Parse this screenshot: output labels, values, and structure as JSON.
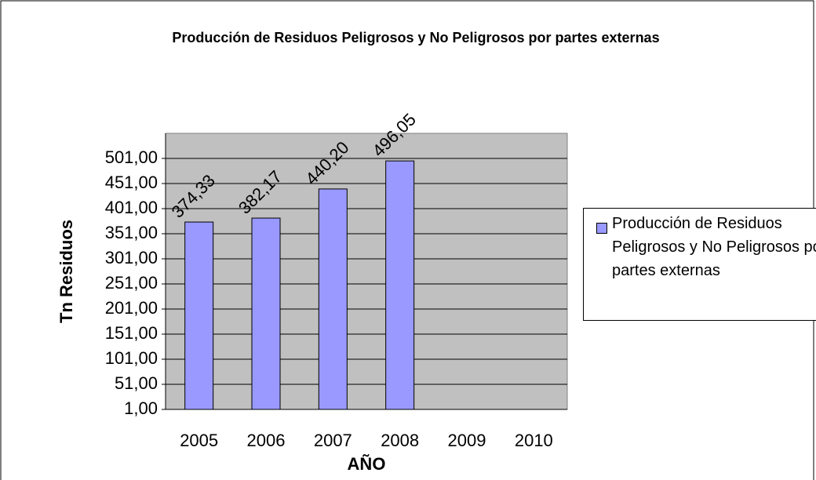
{
  "chart_data": {
    "type": "bar",
    "title": "Producción de Residuos Peligrosos y No Peligrosos por partes externas",
    "x_label": "AÑO",
    "y_label": "Tn Residuos",
    "categories": [
      "2005",
      "2006",
      "2007",
      "2008",
      "2009",
      "2010"
    ],
    "series": [
      {
        "name": "Producción de Residuos Peligrosos y No Peligrosos por partes externas",
        "color": "#9999ff",
        "values": [
          374.33,
          382.17,
          440.2,
          496.05,
          null,
          null
        ],
        "value_labels": [
          "374,33",
          "382,17",
          "440,20",
          "496,05",
          null,
          null
        ]
      }
    ],
    "ylim": [
      1,
      551
    ],
    "yticks": [
      {
        "value": 1,
        "label": "1,00"
      },
      {
        "value": 51,
        "label": "51,00"
      },
      {
        "value": 101,
        "label": "101,00"
      },
      {
        "value": 151,
        "label": "151,00"
      },
      {
        "value": 201,
        "label": "201,00"
      },
      {
        "value": 251,
        "label": "251,00"
      },
      {
        "value": 301,
        "label": "301,00"
      },
      {
        "value": 351,
        "label": "351,00"
      },
      {
        "value": 401,
        "label": "401,00"
      },
      {
        "value": 451,
        "label": "451,00"
      },
      {
        "value": 501,
        "label": "501,00"
      }
    ],
    "grid": true,
    "plot_background": "#c0c0c0",
    "legend": "right"
  }
}
